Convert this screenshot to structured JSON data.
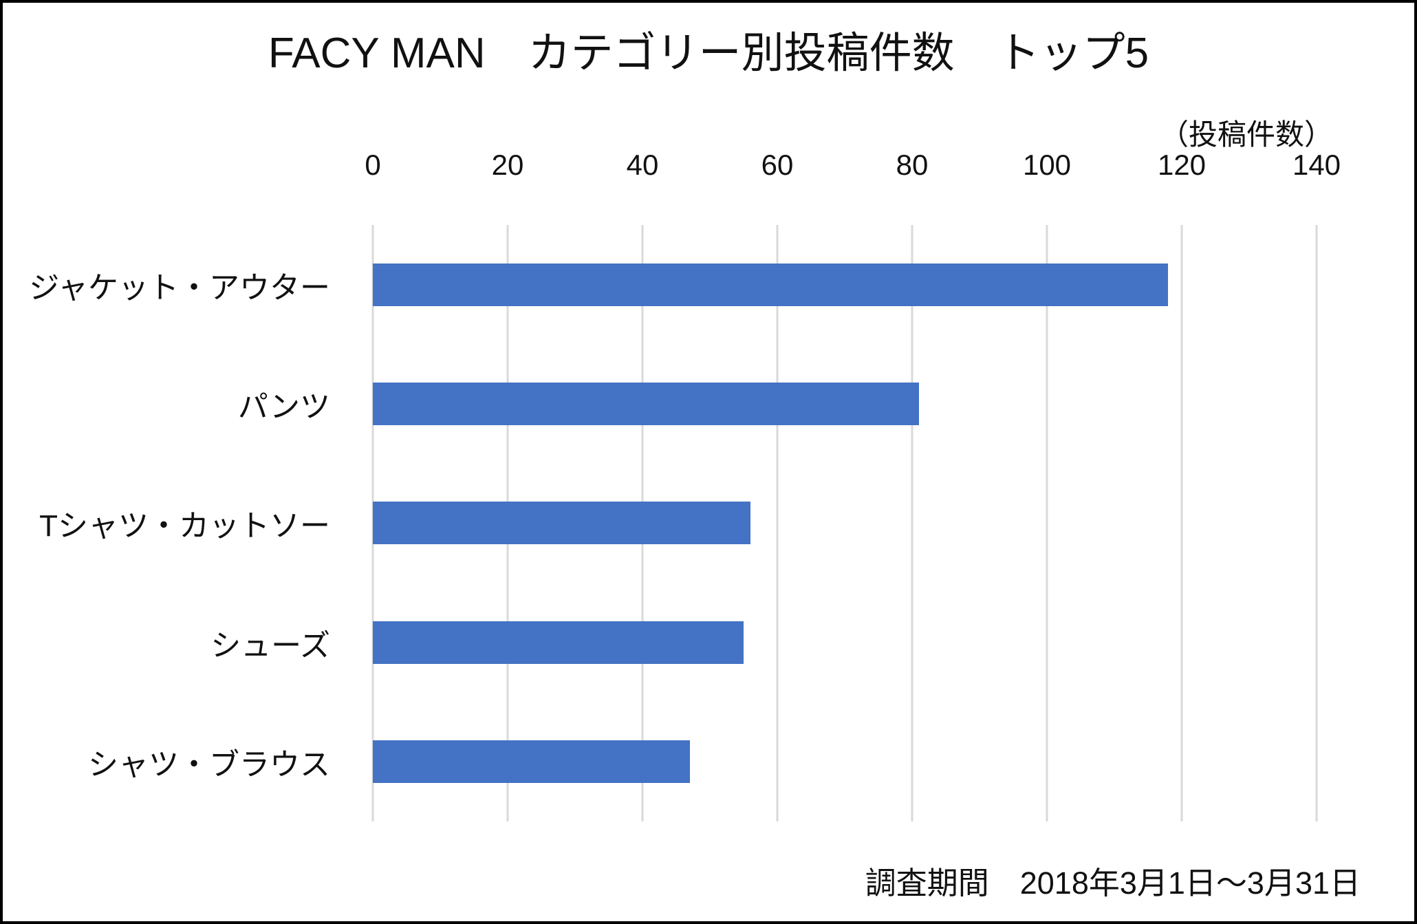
{
  "chart_data": {
    "type": "bar",
    "orientation": "horizontal",
    "title": "FACY MAN　カテゴリー別投稿件数　トップ5",
    "unit_label": "（投稿件数）",
    "categories": [
      "ジャケット・アウター",
      "パンツ",
      "Tシャツ・カットソー",
      "シューズ",
      "シャツ・ブラウス"
    ],
    "values": [
      118,
      81,
      56,
      55,
      47
    ],
    "x_ticks": [
      0,
      20,
      40,
      60,
      80,
      100,
      120,
      140
    ],
    "xlim": [
      0,
      140
    ],
    "grid": true,
    "legend": "none",
    "bar_color": "#4472c4",
    "gridline_color": "#d9d9d9",
    "footnote": "調査期間　2018年3月1日～3月31日"
  }
}
